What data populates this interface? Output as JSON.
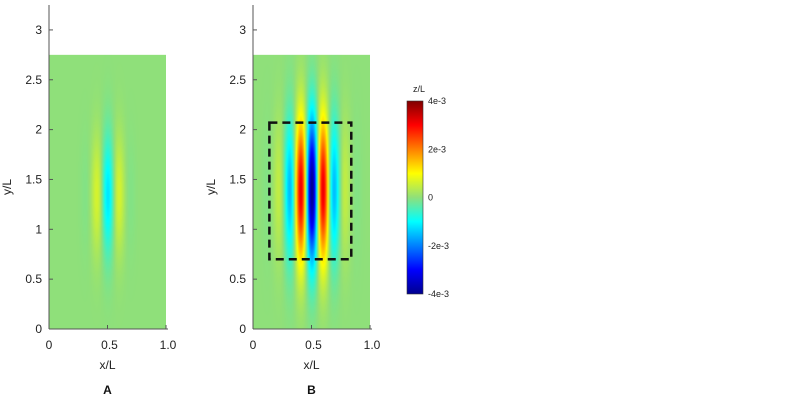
{
  "chart_data": {
    "type": "heatmap",
    "panels": [
      {
        "label": "A",
        "xlabel": "x/L",
        "ylabel": "y/L",
        "xlim": [
          0,
          1.0
        ],
        "ylim": [
          0,
          3.25
        ],
        "xticks": [
          "0",
          "0.5",
          "1.0"
        ],
        "yticks": [
          "0",
          "0.5",
          "1",
          "1.5",
          "2",
          "2.5",
          "3"
        ],
        "xtick_values": [
          0,
          0.5,
          1.0
        ],
        "ytick_values": [
          0,
          0.5,
          1,
          1.5,
          2,
          2.5,
          3
        ],
        "domain": {
          "x": [
            0,
            1.0
          ],
          "y": [
            0,
            2.75
          ]
        },
        "field": {
          "center_x": 0.5,
          "center_y": 1.35,
          "peak": 0.0012,
          "sigma_x": 0.09,
          "sigma_y": 0.42,
          "wavelength": 0.22
        }
      },
      {
        "label": "B",
        "xlabel": "x/L",
        "ylabel": "y/L",
        "xlim": [
          0,
          1.0
        ],
        "ylim": [
          0,
          3.25
        ],
        "xticks": [
          "0",
          "0.5",
          "1.0"
        ],
        "yticks": [
          "0",
          "0.5",
          "1",
          "1.5",
          "2",
          "2.5",
          "3"
        ],
        "xtick_values": [
          0,
          0.5,
          1.0
        ],
        "ytick_values": [
          0,
          0.5,
          1,
          1.5,
          2,
          2.5,
          3
        ],
        "domain": {
          "x": [
            0,
            1.0
          ],
          "y": [
            0,
            2.75
          ]
        },
        "field": {
          "center_x": 0.5,
          "center_y": 1.4,
          "peak": 0.004,
          "sigma_x": 0.14,
          "sigma_y": 0.5,
          "wavelength": 0.2
        },
        "annotation_box": {
          "x0": 0.14,
          "x1": 0.84,
          "y0": 0.7,
          "y1": 2.07,
          "style": "dashed"
        }
      }
    ],
    "colorbar": {
      "title": "z/L",
      "range": [
        -0.004,
        0.004
      ],
      "ticks": [
        "4e-3",
        "2e-3",
        "0",
        "-2e-3",
        "-4e-3"
      ],
      "tick_values": [
        0.004,
        0.002,
        0,
        -0.002,
        -0.004
      ],
      "colormap": "jet"
    }
  },
  "colors": {
    "background_field": "#8fe07a",
    "axis": "#555555",
    "box": "#111111"
  }
}
